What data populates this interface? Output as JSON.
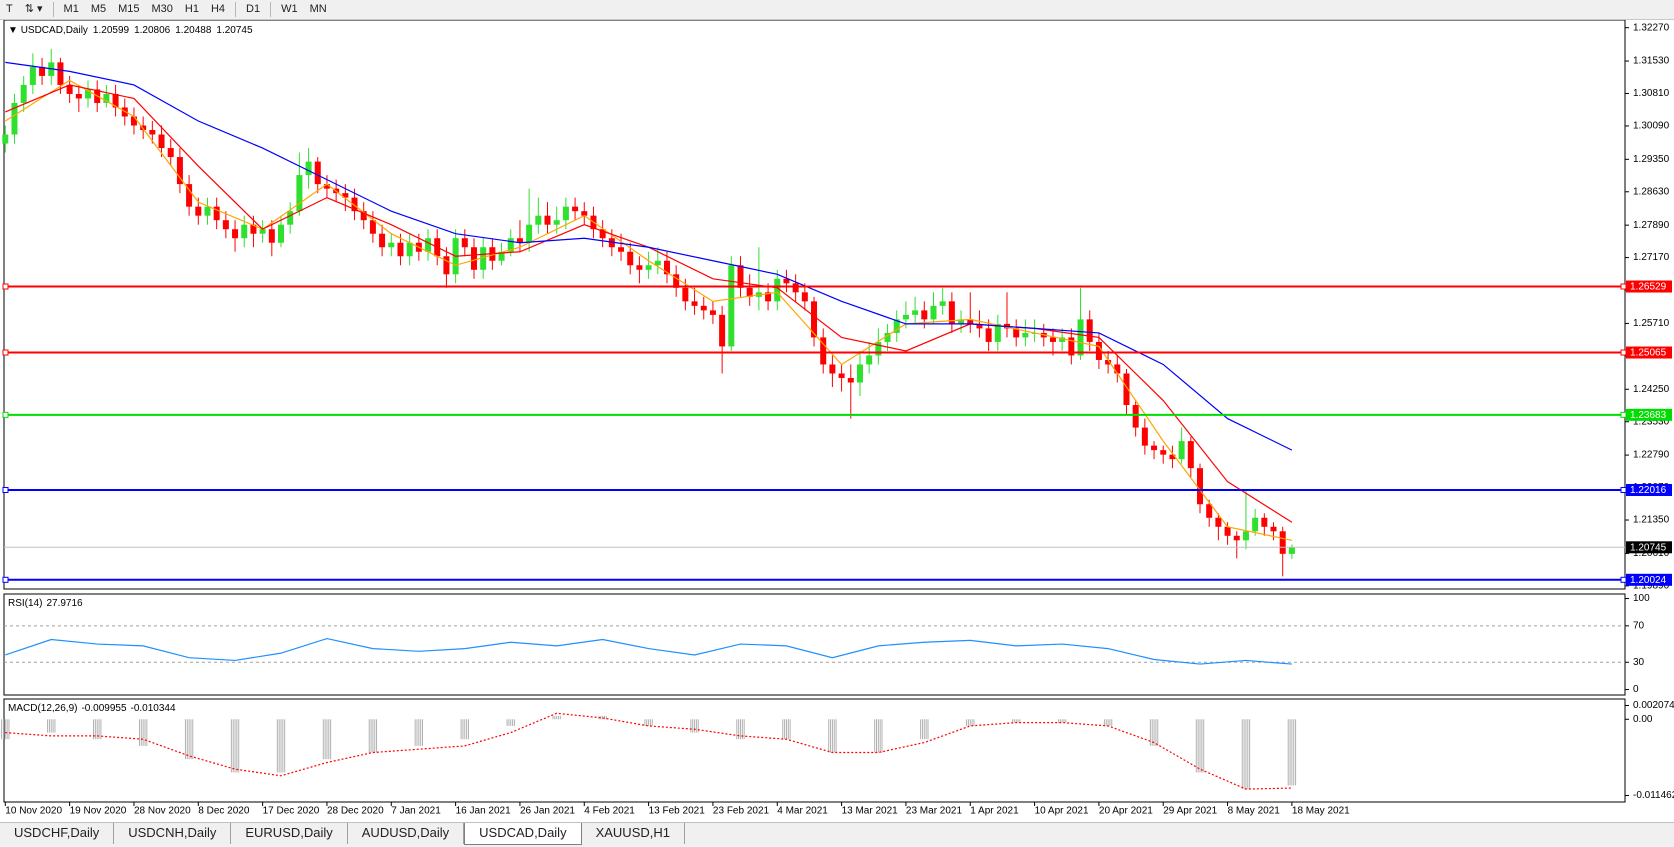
{
  "toolbar": {
    "timeframes": [
      "M1",
      "M5",
      "M15",
      "M30",
      "H1",
      "H4",
      "D1",
      "W1",
      "MN"
    ]
  },
  "tabs": [
    "USDCHF,Daily",
    "USDCNH,Daily",
    "EURUSD,Daily",
    "AUDUSD,Daily",
    "USDCAD,Daily",
    "XAUUSD,H1"
  ],
  "active_tab": 4,
  "chart_data": [
    {
      "type": "candlestick",
      "title": "USDCAD,Daily",
      "up_color": "#2fe02f",
      "down_color": "#ff0000",
      "ylim": [
        1.1982,
        1.3244
      ],
      "yticks": [
        {
          "value": 1.3227,
          "label": "1.32270"
        },
        {
          "value": 1.3153,
          "label": "1.31530"
        },
        {
          "value": 1.3081,
          "label": "1.30810"
        },
        {
          "value": 1.3009,
          "label": "1.30090"
        },
        {
          "value": 1.2935,
          "label": "1.29350"
        },
        {
          "value": 1.2863,
          "label": "1.28630"
        },
        {
          "value": 1.2789,
          "label": "1.27890"
        },
        {
          "value": 1.2717,
          "label": "1.27170"
        },
        {
          "value": 1.2645,
          "label": "1.26450"
        },
        {
          "value": 1.2571,
          "label": "1.25710"
        },
        {
          "value": 1.2499,
          "label": "1.24990"
        },
        {
          "value": 1.2425,
          "label": "1.24250"
        },
        {
          "value": 1.2353,
          "label": "1.23530"
        },
        {
          "value": 1.2279,
          "label": "1.22790"
        },
        {
          "value": 1.2207,
          "label": "1.22070"
        },
        {
          "value": 1.2135,
          "label": "1.21350"
        },
        {
          "value": 1.2061,
          "label": "1.20610"
        },
        {
          "value": 1.1989,
          "label": "1.19890"
        }
      ],
      "open": [
        1.297,
        1.299,
        1.306,
        1.31,
        1.314,
        1.312,
        1.315,
        1.31,
        1.308,
        1.307,
        1.309,
        1.306,
        1.308,
        1.305,
        1.303,
        1.301,
        1.3,
        1.299,
        1.296,
        1.294,
        1.288,
        1.283,
        1.281,
        1.283,
        1.28,
        1.278,
        1.276,
        1.279,
        1.277,
        1.278,
        1.275,
        1.279,
        1.282,
        1.29,
        1.293,
        1.288,
        1.287,
        1.286,
        1.285,
        1.282,
        1.28,
        1.277,
        1.274,
        1.275,
        1.272,
        1.275,
        1.273,
        1.276,
        1.272,
        1.268,
        1.276,
        1.274,
        1.269,
        1.274,
        1.271,
        1.273,
        1.276,
        1.275,
        1.279,
        1.281,
        1.279,
        1.28,
        1.283,
        1.282,
        1.281,
        1.278,
        1.276,
        1.274,
        1.273,
        1.27,
        1.269,
        1.27,
        1.271,
        1.268,
        1.265,
        1.262,
        1.261,
        1.26,
        1.259,
        1.252,
        1.27,
        1.265,
        1.263,
        1.264,
        1.262,
        1.267,
        1.266,
        1.264,
        1.262,
        1.254,
        1.248,
        1.246,
        1.245,
        1.244,
        1.248,
        1.25,
        1.253,
        1.255,
        1.258,
        1.259,
        1.26,
        1.258,
        1.261,
        1.262,
        1.257,
        1.258,
        1.257,
        1.256,
        1.253,
        1.257,
        1.256,
        1.254,
        1.255,
        1.255,
        1.254,
        1.253,
        1.254,
        1.25,
        1.258,
        1.253,
        1.249,
        1.248,
        1.246,
        1.239,
        1.234,
        1.23,
        1.229,
        1.228,
        1.227,
        1.231,
        1.225,
        1.217,
        1.214,
        1.212,
        1.21,
        1.209,
        1.211,
        1.214,
        1.212,
        1.211,
        1.20599
      ],
      "high": [
        1.301,
        1.308,
        1.312,
        1.317,
        1.316,
        1.318,
        1.316,
        1.312,
        1.31,
        1.311,
        1.311,
        1.31,
        1.31,
        1.307,
        1.305,
        1.303,
        1.302,
        1.301,
        1.298,
        1.296,
        1.29,
        1.285,
        1.285,
        1.285,
        1.282,
        1.28,
        1.281,
        1.281,
        1.28,
        1.28,
        1.281,
        1.284,
        1.295,
        1.296,
        1.294,
        1.29,
        1.289,
        1.288,
        1.287,
        1.284,
        1.282,
        1.279,
        1.277,
        1.277,
        1.277,
        1.277,
        1.278,
        1.278,
        1.274,
        1.278,
        1.278,
        1.276,
        1.276,
        1.276,
        1.275,
        1.278,
        1.28,
        1.287,
        1.285,
        1.284,
        1.283,
        1.285,
        1.285,
        1.284,
        1.283,
        1.28,
        1.278,
        1.277,
        1.275,
        1.272,
        1.273,
        1.274,
        1.273,
        1.27,
        1.267,
        1.265,
        1.263,
        1.262,
        1.261,
        1.272,
        1.272,
        1.268,
        1.274,
        1.266,
        1.269,
        1.269,
        1.268,
        1.266,
        1.263,
        1.256,
        1.25,
        1.248,
        1.248,
        1.251,
        1.253,
        1.256,
        1.257,
        1.26,
        1.262,
        1.263,
        1.262,
        1.264,
        1.265,
        1.264,
        1.26,
        1.264,
        1.26,
        1.258,
        1.259,
        1.264,
        1.258,
        1.258,
        1.258,
        1.257,
        1.256,
        1.256,
        1.256,
        1.265,
        1.26,
        1.255,
        1.251,
        1.25,
        1.247,
        1.24,
        1.236,
        1.231,
        1.23,
        1.23,
        1.234,
        1.232,
        1.226,
        1.218,
        1.215,
        1.213,
        1.211,
        1.22,
        1.216,
        1.215,
        1.213,
        1.212,
        1.20806
      ],
      "low": [
        1.295,
        1.297,
        1.304,
        1.308,
        1.31,
        1.31,
        1.308,
        1.306,
        1.304,
        1.305,
        1.304,
        1.305,
        1.303,
        1.301,
        1.299,
        1.298,
        1.297,
        1.294,
        1.292,
        1.286,
        1.281,
        1.279,
        1.279,
        1.278,
        1.276,
        1.273,
        1.274,
        1.274,
        1.275,
        1.272,
        1.274,
        1.277,
        1.281,
        1.287,
        1.286,
        1.285,
        1.284,
        1.282,
        1.28,
        1.278,
        1.275,
        1.272,
        1.272,
        1.27,
        1.27,
        1.271,
        1.271,
        1.27,
        1.265,
        1.266,
        1.272,
        1.267,
        1.267,
        1.269,
        1.27,
        1.272,
        1.273,
        1.273,
        1.277,
        1.277,
        1.277,
        1.278,
        1.28,
        1.279,
        1.276,
        1.274,
        1.272,
        1.271,
        1.268,
        1.266,
        1.267,
        1.268,
        1.266,
        1.263,
        1.26,
        1.259,
        1.258,
        1.257,
        1.246,
        1.251,
        1.263,
        1.261,
        1.26,
        1.26,
        1.26,
        1.264,
        1.262,
        1.26,
        1.252,
        1.246,
        1.243,
        1.242,
        1.236,
        1.241,
        1.246,
        1.248,
        1.251,
        1.253,
        1.256,
        1.257,
        1.256,
        1.257,
        1.259,
        1.255,
        1.255,
        1.255,
        1.254,
        1.251,
        1.251,
        1.254,
        1.252,
        1.252,
        1.253,
        1.252,
        1.25,
        1.251,
        1.248,
        1.249,
        1.251,
        1.247,
        1.246,
        1.244,
        1.237,
        1.232,
        1.228,
        1.227,
        1.226,
        1.225,
        1.226,
        1.223,
        1.215,
        1.212,
        1.209,
        1.208,
        1.205,
        1.207,
        1.21,
        1.21,
        1.209,
        1.201,
        1.20488
      ],
      "close": [
        1.299,
        1.306,
        1.31,
        1.314,
        1.312,
        1.315,
        1.31,
        1.308,
        1.307,
        1.309,
        1.306,
        1.308,
        1.305,
        1.303,
        1.301,
        1.3,
        1.299,
        1.296,
        1.294,
        1.288,
        1.283,
        1.281,
        1.283,
        1.28,
        1.278,
        1.276,
        1.279,
        1.277,
        1.278,
        1.275,
        1.279,
        1.282,
        1.29,
        1.293,
        1.288,
        1.287,
        1.286,
        1.285,
        1.282,
        1.28,
        1.277,
        1.274,
        1.275,
        1.272,
        1.275,
        1.273,
        1.276,
        1.272,
        1.268,
        1.276,
        1.274,
        1.269,
        1.274,
        1.271,
        1.273,
        1.276,
        1.275,
        1.279,
        1.281,
        1.279,
        1.28,
        1.283,
        1.282,
        1.281,
        1.278,
        1.276,
        1.274,
        1.273,
        1.27,
        1.269,
        1.27,
        1.271,
        1.268,
        1.265,
        1.262,
        1.261,
        1.26,
        1.259,
        1.252,
        1.27,
        1.265,
        1.263,
        1.264,
        1.262,
        1.267,
        1.266,
        1.264,
        1.262,
        1.254,
        1.248,
        1.246,
        1.245,
        1.244,
        1.248,
        1.25,
        1.253,
        1.255,
        1.258,
        1.259,
        1.26,
        1.258,
        1.261,
        1.262,
        1.257,
        1.258,
        1.257,
        1.256,
        1.253,
        1.257,
        1.256,
        1.254,
        1.255,
        1.255,
        1.254,
        1.253,
        1.254,
        1.25,
        1.258,
        1.253,
        1.249,
        1.248,
        1.246,
        1.239,
        1.234,
        1.23,
        1.229,
        1.228,
        1.227,
        1.231,
        1.225,
        1.217,
        1.214,
        1.212,
        1.21,
        1.209,
        1.211,
        1.214,
        1.212,
        1.211,
        1.206,
        1.20745
      ],
      "series": [
        {
          "color": "#ffa500",
          "x": [
            0,
            7,
            14,
            21,
            28,
            35,
            42,
            49,
            56,
            63,
            70,
            77,
            84,
            91,
            98,
            105,
            112,
            119,
            126,
            133,
            140
          ],
          "values": [
            1.302,
            1.311,
            1.303,
            1.284,
            1.278,
            1.288,
            1.277,
            1.27,
            1.274,
            1.281,
            1.271,
            1.262,
            1.264,
            1.248,
            1.257,
            1.258,
            1.255,
            1.252,
            1.231,
            1.212,
            1.209
          ]
        },
        {
          "color": "#ff0000",
          "x": [
            0,
            7,
            14,
            21,
            28,
            35,
            42,
            49,
            56,
            63,
            70,
            77,
            84,
            91,
            98,
            105,
            112,
            119,
            126,
            133,
            140
          ],
          "values": [
            1.304,
            1.31,
            1.307,
            1.292,
            1.278,
            1.285,
            1.279,
            1.272,
            1.273,
            1.279,
            1.274,
            1.267,
            1.265,
            1.254,
            1.251,
            1.257,
            1.256,
            1.254,
            1.24,
            1.222,
            1.213
          ]
        },
        {
          "color": "#0000ff",
          "x": [
            0,
            7,
            14,
            21,
            28,
            35,
            42,
            49,
            56,
            63,
            70,
            77,
            84,
            91,
            98,
            105,
            112,
            119,
            126,
            133,
            140
          ],
          "values": [
            1.315,
            1.313,
            1.31,
            1.302,
            1.296,
            1.289,
            1.282,
            1.277,
            1.275,
            1.276,
            1.274,
            1.271,
            1.268,
            1.262,
            1.257,
            1.257,
            1.256,
            1.255,
            1.248,
            1.236,
            1.229
          ]
        }
      ],
      "levels": [
        {
          "value": 1.26529,
          "color": "#ff0000"
        },
        {
          "value": 1.25065,
          "color": "#ff0000"
        },
        {
          "value": 1.23683,
          "color": "#00dd00"
        },
        {
          "value": 1.22016,
          "color": "#0000ff"
        },
        {
          "value": 1.20024,
          "color": "#0000ff"
        }
      ]
    },
    {
      "type": "line",
      "title": "RSI(14)",
      "ylim": [
        -6,
        105
      ],
      "yticks": [
        100,
        70,
        30,
        0
      ],
      "levels": [
        70,
        30
      ],
      "series": [
        {
          "color": "#1e90ff",
          "x": [
            0,
            5,
            10,
            15,
            20,
            25,
            30,
            35,
            40,
            45,
            50,
            55,
            60,
            65,
            70,
            75,
            80,
            85,
            90,
            95,
            100,
            105,
            110,
            115,
            120,
            125,
            130,
            135,
            140
          ],
          "values": [
            38,
            55,
            50,
            48,
            35,
            32,
            40,
            56,
            45,
            42,
            45,
            52,
            48,
            55,
            45,
            38,
            50,
            48,
            35,
            48,
            52,
            54,
            48,
            50,
            45,
            33,
            28,
            32,
            27.9716
          ]
        }
      ]
    },
    {
      "type": "macd",
      "title": "MACD(12,26,9)",
      "ylim": [
        -0.01244,
        0.00305
      ],
      "yticks": [
        0.002074,
        {
          "value": 0,
          "label": "0.00"
        },
        -0.011462
      ],
      "series": [
        {
          "kind": "bar",
          "color": "#b0b0b0",
          "x": [
            0,
            5,
            10,
            15,
            20,
            25,
            30,
            35,
            40,
            45,
            50,
            55,
            60,
            65,
            70,
            75,
            80,
            85,
            90,
            95,
            100,
            105,
            110,
            115,
            120,
            125,
            130,
            135,
            140
          ],
          "values": [
            -0.003,
            -0.002,
            -0.003,
            -0.004,
            -0.006,
            -0.008,
            -0.008,
            -0.006,
            -0.005,
            -0.004,
            -0.003,
            -0.001,
            0.0005,
            0.0005,
            -0.001,
            -0.002,
            -0.003,
            -0.003,
            -0.005,
            -0.005,
            -0.003,
            -0.001,
            -0.0005,
            -0.0005,
            -0.001,
            -0.004,
            -0.008,
            -0.0105,
            -0.009955
          ]
        },
        {
          "kind": "dotted",
          "color": "#ff0000",
          "x": [
            0,
            5,
            10,
            15,
            20,
            25,
            30,
            35,
            40,
            45,
            50,
            55,
            60,
            65,
            70,
            75,
            80,
            85,
            90,
            95,
            100,
            105,
            110,
            115,
            120,
            125,
            130,
            135,
            140
          ],
          "values": [
            -0.002,
            -0.0025,
            -0.0025,
            -0.003,
            -0.0055,
            -0.0075,
            -0.0085,
            -0.0065,
            -0.005,
            -0.0045,
            -0.004,
            -0.002,
            0.0009,
            0.0002,
            -0.001,
            -0.0015,
            -0.0025,
            -0.003,
            -0.005,
            -0.005,
            -0.0035,
            -0.001,
            -0.0005,
            -0.0005,
            -0.001,
            -0.0035,
            -0.0075,
            -0.0105,
            -0.010344
          ]
        }
      ],
      "xticks": [
        {
          "value": 0,
          "label": "10 Nov 2020"
        },
        {
          "value": 7,
          "label": "19 Nov 2020"
        },
        {
          "value": 14,
          "label": "28 Nov 2020"
        },
        {
          "value": 21,
          "label": "8 Dec 2020"
        },
        {
          "value": 28,
          "label": "17 Dec 2020"
        },
        {
          "value": 35,
          "label": "28 Dec 2020"
        },
        {
          "value": 42,
          "label": "7 Jan 2021"
        },
        {
          "value": 49,
          "label": "16 Jan 2021"
        },
        {
          "value": 56,
          "label": "26 Jan 2021"
        },
        {
          "value": 63,
          "label": "4 Feb 2021"
        },
        {
          "value": 70,
          "label": "13 Feb 2021"
        },
        {
          "value": 77,
          "label": "23 Feb 2021"
        },
        {
          "value": 84,
          "label": "4 Mar 2021"
        },
        {
          "value": 91,
          "label": "13 Mar 2021"
        },
        {
          "value": 98,
          "label": "23 Mar 2021"
        },
        {
          "value": 105,
          "label": "1 Apr 2021"
        },
        {
          "value": 112,
          "label": "10 Apr 2021"
        },
        {
          "value": 119,
          "label": "20 Apr 2021"
        },
        {
          "value": 126,
          "label": "29 Apr 2021"
        },
        {
          "value": 133,
          "label": "8 May 2021"
        },
        {
          "value": 140,
          "label": "18 May 2021"
        }
      ]
    }
  ]
}
